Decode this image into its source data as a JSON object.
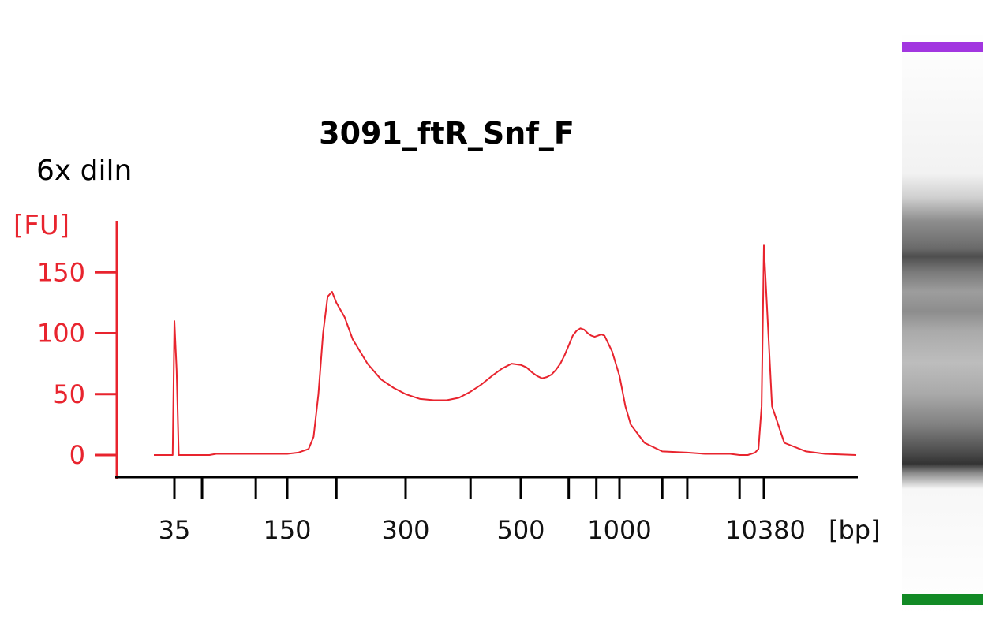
{
  "chart_data": {
    "type": "line",
    "title": "3091_ftR_Snf_F",
    "annotation": "6x diln",
    "ylabel": "[FU]",
    "xlabel": "[bp]",
    "ylim": [
      0,
      170
    ],
    "y_ticks": [
      0,
      50,
      100,
      150
    ],
    "x_tick_labels": [
      "35",
      "150",
      "300",
      "500",
      "1000",
      "10380"
    ],
    "colors": {
      "axis": "#e8242e",
      "trace": "#e8242e",
      "upper_marker": "#a236e0",
      "lower_marker": "#128a25"
    },
    "series": [
      {
        "x_bp": [
          25,
          30,
          33,
          34,
          35,
          36,
          37,
          38,
          40,
          45,
          50,
          55,
          60,
          80,
          100,
          120,
          130,
          140,
          150,
          160,
          170,
          175,
          180,
          185,
          190,
          195,
          200,
          210,
          220,
          240,
          260,
          280,
          300,
          320,
          340,
          360,
          380,
          400,
          420,
          440,
          460,
          480,
          500,
          520,
          540,
          560,
          580,
          600,
          620,
          640,
          660,
          680,
          700,
          720,
          740,
          760,
          780,
          800,
          820,
          840,
          860,
          880,
          900,
          950,
          1000,
          1100,
          1200,
          1500,
          2000,
          3000,
          4000,
          5000,
          6000,
          7000,
          8000,
          9000,
          9500,
          10000,
          10380,
          11000,
          12000,
          14000,
          16000,
          20000
        ],
        "y": [
          0,
          0,
          0,
          0,
          110,
          70,
          0,
          0,
          0,
          0,
          0,
          0,
          1,
          1,
          1,
          1,
          1,
          1,
          1,
          2,
          5,
          15,
          50,
          100,
          130,
          134,
          125,
          113,
          95,
          75,
          62,
          55,
          50,
          46,
          45,
          45,
          47,
          52,
          58,
          65,
          71,
          75,
          74,
          72,
          68,
          65,
          63,
          64,
          66,
          70,
          75,
          82,
          90,
          98,
          102,
          104,
          103,
          100,
          98,
          97,
          98,
          99,
          98,
          85,
          65,
          40,
          25,
          10,
          3,
          2,
          1,
          1,
          1,
          0,
          0,
          2,
          5,
          40,
          172,
          40,
          10,
          3,
          1,
          0
        ]
      }
    ]
  }
}
